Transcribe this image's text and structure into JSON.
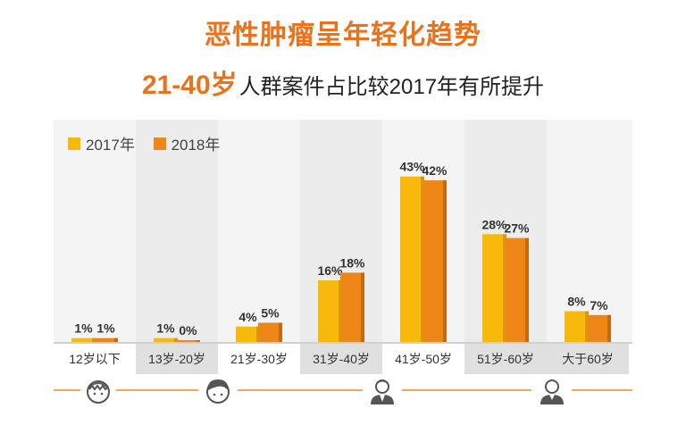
{
  "title": "恶性肿瘤呈年轻化趋势",
  "subtitle": {
    "highlight": "21-40岁",
    "text": "人群案件占比较2017年有所提升"
  },
  "colors": {
    "accent": "#e8731f",
    "series_2017": "#f9b90c",
    "series_2018": "#ef8618"
  },
  "footer_icons": [
    "child-avatar-icon",
    "teen-avatar-icon",
    "adult-man-avatar-icon",
    "senior-avatar-icon"
  ],
  "chart_data": {
    "type": "bar",
    "categories": [
      "12岁以下",
      "13岁-20岁",
      "21岁-30岁",
      "31岁-40岁",
      "41岁-50岁",
      "51岁-60岁",
      "大于60岁"
    ],
    "series": [
      {
        "name": "2017年",
        "values": [
          1,
          1,
          4,
          16,
          43,
          28,
          8
        ],
        "labels": [
          "1%",
          "1%",
          "4%",
          "16%",
          "43%",
          "28%",
          "8%"
        ]
      },
      {
        "name": "2018年",
        "values": [
          1,
          0,
          5,
          18,
          42,
          27,
          7
        ],
        "labels": [
          "1%",
          "0%",
          "5%",
          "18%",
          "42%",
          "27%",
          "7%"
        ]
      }
    ],
    "ylim": [
      0,
      45
    ],
    "legend_position": "top-left",
    "grid": false
  }
}
